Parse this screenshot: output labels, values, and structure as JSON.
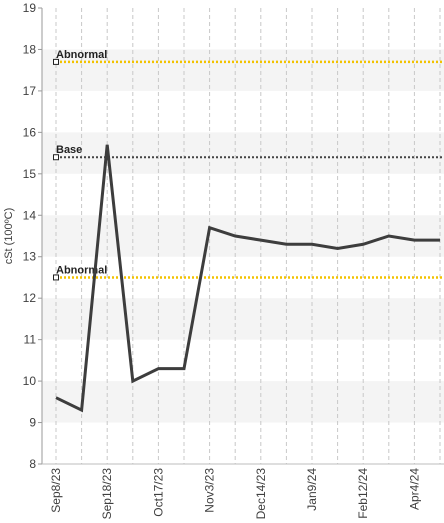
{
  "chart_data": {
    "type": "line",
    "title": "",
    "xlabel": "",
    "ylabel": "cSt (100ºC)",
    "ylim": [
      8,
      19
    ],
    "yticks": [
      8,
      9,
      10,
      11,
      12,
      13,
      14,
      15,
      16,
      17,
      18,
      19
    ],
    "x_tick_labels": [
      "Sep8/23",
      "Sep18/23",
      "Oct17/23",
      "Nov3/23",
      "Dec14/23",
      "Jan9/24",
      "Feb12/24",
      "Apr4/24"
    ],
    "grid": true,
    "series": [
      {
        "values": [
          9.6,
          9.3,
          15.7,
          10.0,
          10.3,
          10.3,
          13.7,
          13.5,
          13.4,
          13.3,
          13.3,
          13.2,
          13.3,
          13.5,
          13.4,
          13.4
        ],
        "color": "#3d3d3d"
      }
    ],
    "reference_lines": [
      {
        "label": "Abnormal",
        "value": 17.7,
        "color": "#f2c200",
        "style": "dotted"
      },
      {
        "label": "Base",
        "value": 15.4,
        "color": "#444444",
        "style": "dotted"
      },
      {
        "label": "Abnormal",
        "value": 12.5,
        "color": "#f2c200",
        "style": "dotted"
      }
    ],
    "background_bands": "alternating light gray"
  }
}
